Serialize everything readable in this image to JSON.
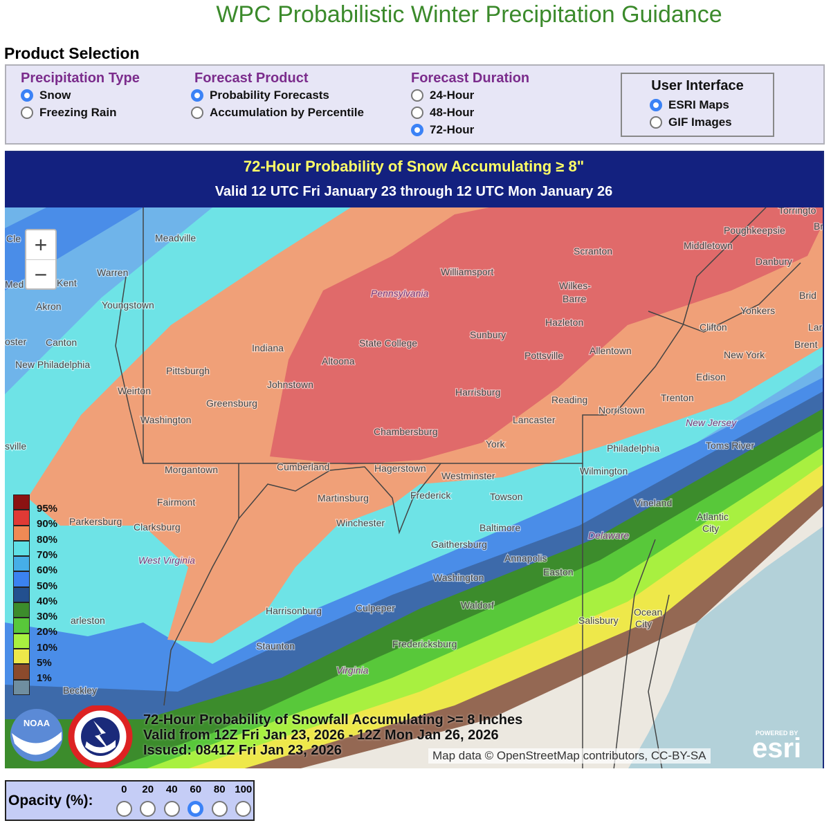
{
  "page_title": "WPC Probabilistic Winter Precipitation Guidance",
  "product_selection": {
    "label": "Product Selection",
    "groups": [
      {
        "heading": "Precipitation Type",
        "options": [
          {
            "label": "Snow",
            "selected": true
          },
          {
            "label": "Freezing Rain",
            "selected": false
          }
        ]
      },
      {
        "heading": "Forecast Product",
        "options": [
          {
            "label": "Probability Forecasts",
            "selected": true
          },
          {
            "label": "Accumulation by Percentile",
            "selected": false
          }
        ]
      },
      {
        "heading": "Forecast Duration",
        "options": [
          {
            "label": "24-Hour",
            "selected": false
          },
          {
            "label": "48-Hour",
            "selected": false
          },
          {
            "label": "72-Hour",
            "selected": true
          }
        ]
      }
    ],
    "user_interface": {
      "heading": "User Interface",
      "options": [
        {
          "label": "ESRI Maps",
          "selected": true
        },
        {
          "label": "GIF Images",
          "selected": false
        }
      ]
    }
  },
  "map": {
    "header_title": "72-Hour Probability of Snow Accumulating ≥ 8\"",
    "header_subtitle": "Valid 12 UTC Fri January 23 through 12 UTC Mon January 26",
    "zoom_in": "+",
    "zoom_out": "−",
    "legend": {
      "labels": [
        "95%",
        "90%",
        "80%",
        "70%",
        "60%",
        "50%",
        "40%",
        "30%",
        "20%",
        "10%",
        "5%",
        "1%"
      ],
      "colors": [
        "#8b1212",
        "#e03a35",
        "#f08a55",
        "#5fe0e6",
        "#46aee8",
        "#3b82f0",
        "#23508f",
        "#3c8c2c",
        "#58c83a",
        "#a8f040",
        "#eee84a",
        "#8b4a2c",
        "#6f8ea0"
      ]
    },
    "caption": {
      "line1": "72-Hour Probability of Snowfall Accumulating >= 8 Inches",
      "line2": "Valid from 12Z Fri Jan 23, 2026 - 12Z Mon Jan 26, 2026",
      "line3": "Issued: 0841Z Fri Jan 23, 2026"
    },
    "noaa_logo": "NOAA",
    "nws_logo": "NATIONAL WEATHER SERVICE",
    "attribution": "Map data © OpenStreetMap contributors, CC-BY-SA",
    "esri_powered": "POWERED BY",
    "esri_logo": "esri",
    "cities": [
      "Cle",
      "Med",
      "oster",
      "sville",
      "Meadville",
      "Warren",
      "Kent",
      "Akron",
      "Youngstown",
      "Canton",
      "New Philadelphia",
      "Pittsburgh",
      "Indiana",
      "Weirton",
      "Greensburg",
      "Washington",
      "Johnstown",
      "Altoona",
      "State College",
      "Pennsylvania",
      "Williamsport",
      "Scranton",
      "Wilkes-",
      "Barre",
      "Hazleton",
      "Sunbury",
      "Pottsville",
      "Allentown",
      "Harrisburg",
      "Reading",
      "Lancaster",
      "Norristown",
      "Chambersburg",
      "York",
      "Philadelphia",
      "Trenton",
      "Edison",
      "New York",
      "Yonkers",
      "Clifton",
      "Middletown",
      "Poughkeepsie",
      "Danbury",
      "Torringto",
      "Br",
      "Brid",
      "Lar",
      "Brent",
      "New Jersey",
      "Toms River",
      "Morgantown",
      "Cumberland",
      "Hagerstown",
      "Westminster",
      "Frederick",
      "Martinsburg",
      "Towson",
      "Wilmington",
      "Vineland",
      "Atlantic",
      "City",
      "Fairmont",
      "Parkersburg",
      "Clarksburg",
      "Winchester",
      "Baltimore",
      "Delaware",
      "West Virginia",
      "Gaithersburg",
      "Annapolis",
      "Washington",
      "Easton",
      "Waldorf",
      "Culpeper",
      "Harrisonburg",
      "Salisbury",
      "Ocean",
      "City",
      "Staunton",
      "Fredericksburg",
      "Virginia",
      "Beckley",
      "arleston"
    ]
  },
  "opacity": {
    "label": "Opacity (%):",
    "options": [
      "0",
      "20",
      "40",
      "60",
      "80",
      "100"
    ],
    "selected": "60"
  }
}
